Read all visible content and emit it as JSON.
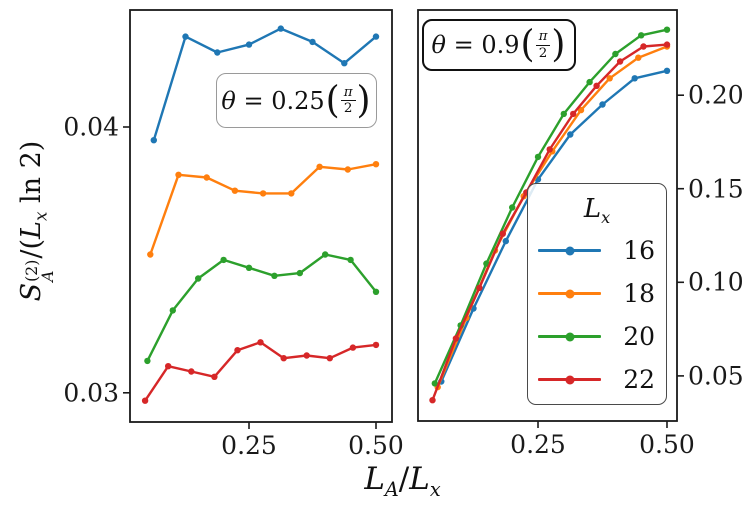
{
  "figure": {
    "ylabel": {
      "s": "S",
      "sup": "(2)",
      "sub": "A",
      "mid": "/(",
      "L": "L",
      "lsub": "x",
      "end": " ln 2)"
    },
    "xlabel": {
      "l1": "L",
      "sub1": "A",
      "slash": "/",
      "l2": "L",
      "sub2": "x"
    }
  },
  "annotations": {
    "left": {
      "theta": "θ",
      "eq": " = ",
      "val": "0.25",
      "lparen": "(",
      "num": "π",
      "den": "2",
      "rparen": ")"
    },
    "right": {
      "theta": "θ",
      "eq": " = ",
      "val": "0.9",
      "lparen": "(",
      "num": "π",
      "den": "2",
      "rparen": ")"
    }
  },
  "legend": {
    "title_main": "L",
    "title_sub": "x",
    "entries": [
      {
        "label": "16",
        "color": "#1f77b4"
      },
      {
        "label": "18",
        "color": "#ff7f0e"
      },
      {
        "label": "20",
        "color": "#2ca02c"
      },
      {
        "label": "22",
        "color": "#d62728"
      }
    ]
  },
  "chart_data": [
    {
      "panel": "left",
      "type": "line",
      "annotation": "θ = 0.25(π/2)",
      "xlabel": "L_A/L_x",
      "ylabel": "S_A^(2)/(L_x ln 2)",
      "xlim": [
        0.0157,
        0.5315
      ],
      "ylim": [
        0.0289,
        0.0444
      ],
      "xticks": [
        0.25,
        0.5
      ],
      "xtick_labels": [
        "0.25",
        "0.50"
      ],
      "yticks": [
        0.03,
        0.04
      ],
      "ytick_labels": [
        "0.03",
        "0.04"
      ],
      "ytick_side": "left",
      "grid": false,
      "series": [
        {
          "name": "16",
          "color": "#1f77b4",
          "x": [
            0.0625,
            0.125,
            0.1875,
            0.25,
            0.3125,
            0.375,
            0.4375,
            0.5
          ],
          "y": [
            0.0395,
            0.0434,
            0.0428,
            0.0431,
            0.0437,
            0.0432,
            0.0424,
            0.0434
          ]
        },
        {
          "name": "18",
          "color": "#ff7f0e",
          "x": [
            0.0556,
            0.1111,
            0.1667,
            0.2222,
            0.2778,
            0.3333,
            0.3889,
            0.4444,
            0.5
          ],
          "y": [
            0.0352,
            0.0382,
            0.0381,
            0.0376,
            0.0375,
            0.0375,
            0.0385,
            0.0384,
            0.0386
          ]
        },
        {
          "name": "20",
          "color": "#2ca02c",
          "x": [
            0.05,
            0.1,
            0.15,
            0.2,
            0.25,
            0.3,
            0.35,
            0.4,
            0.45,
            0.5
          ],
          "y": [
            0.0312,
            0.0331,
            0.0343,
            0.035,
            0.0347,
            0.0344,
            0.0345,
            0.0352,
            0.035,
            0.0338
          ]
        },
        {
          "name": "22",
          "color": "#d62728",
          "x": [
            0.0455,
            0.0909,
            0.1364,
            0.1818,
            0.2273,
            0.2727,
            0.3182,
            0.3636,
            0.4091,
            0.4545,
            0.5
          ],
          "y": [
            0.0297,
            0.031,
            0.0308,
            0.0306,
            0.0316,
            0.0319,
            0.0313,
            0.0314,
            0.0313,
            0.0317,
            0.0318
          ]
        }
      ]
    },
    {
      "panel": "right",
      "type": "line",
      "annotation": "θ = 0.9(π/2)",
      "xlabel": "L_A/L_x",
      "legend_title": "L_x",
      "legend_entries": [
        "16",
        "18",
        "20",
        "22"
      ],
      "xlim": [
        0.0174,
        0.5194
      ],
      "ylim": [
        0.0259,
        0.2455
      ],
      "xticks": [
        0.25,
        0.5
      ],
      "xtick_labels": [
        "0.25",
        "0.50"
      ],
      "yticks": [
        0.05,
        0.1,
        0.15,
        0.2
      ],
      "ytick_labels": [
        "0.05",
        "0.10",
        "0.15",
        "0.20"
      ],
      "ytick_side": "right",
      "grid": false,
      "series": [
        {
          "name": "16",
          "color": "#1f77b4",
          "x": [
            0.0625,
            0.125,
            0.1875,
            0.25,
            0.3125,
            0.375,
            0.4375,
            0.5
          ],
          "y": [
            0.047,
            0.086,
            0.122,
            0.155,
            0.179,
            0.195,
            0.209,
            0.213
          ]
        },
        {
          "name": "18",
          "color": "#ff7f0e",
          "x": [
            0.0556,
            0.1111,
            0.1667,
            0.2222,
            0.2778,
            0.3333,
            0.3889,
            0.4444,
            0.5
          ],
          "y": [
            0.044,
            0.081,
            0.117,
            0.146,
            0.17,
            0.192,
            0.209,
            0.22,
            0.226
          ]
        },
        {
          "name": "20",
          "color": "#2ca02c",
          "x": [
            0.05,
            0.1,
            0.15,
            0.2,
            0.25,
            0.3,
            0.35,
            0.4,
            0.45,
            0.5
          ],
          "y": [
            0.046,
            0.077,
            0.11,
            0.14,
            0.167,
            0.19,
            0.207,
            0.222,
            0.232,
            0.235
          ]
        },
        {
          "name": "22",
          "color": "#d62728",
          "x": [
            0.0455,
            0.0909,
            0.1364,
            0.1818,
            0.2273,
            0.2727,
            0.3182,
            0.3636,
            0.4091,
            0.4545,
            0.5
          ],
          "y": [
            0.037,
            0.07,
            0.097,
            0.126,
            0.148,
            0.171,
            0.19,
            0.205,
            0.218,
            0.226,
            0.227
          ]
        }
      ]
    }
  ]
}
